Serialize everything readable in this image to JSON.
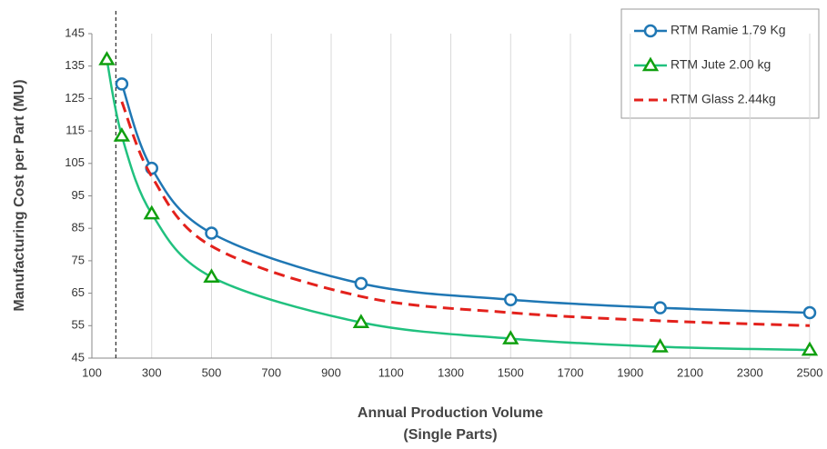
{
  "chart_data": {
    "type": "line",
    "x_label": [
      "Annual Production Volume",
      "(Single Parts)"
    ],
    "y_label": "Manufacturing Cost per Part (MU)",
    "xlim": [
      100,
      2500
    ],
    "xticks": [
      100,
      300,
      500,
      700,
      900,
      1100,
      1300,
      1500,
      1700,
      1900,
      2100,
      2300,
      2500
    ],
    "ylim": [
      45,
      145
    ],
    "yticks": [
      45,
      55,
      65,
      75,
      85,
      95,
      105,
      115,
      125,
      135,
      145
    ],
    "grid": "x",
    "legend": "top-right",
    "reference_line_x": 180,
    "series": [
      {
        "name": "RTM Ramie 1.79 Kg",
        "color": "#1f77b4",
        "marker": "circle",
        "dash": false,
        "x": [
          200,
          300,
          500,
          1000,
          1500,
          2000,
          2500
        ],
        "values": [
          129.5,
          103.5,
          83.5,
          68,
          63,
          60.5,
          59
        ]
      },
      {
        "name": "RTM Jute 2.00 kg",
        "color": "#21c17f",
        "marker_color": "#10a010",
        "marker": "triangle",
        "dash": false,
        "x": [
          150,
          200,
          300,
          500,
          1000,
          1500,
          2000,
          2500
        ],
        "values": [
          137,
          113.5,
          89.5,
          70,
          56,
          51,
          48.5,
          47.5
        ]
      },
      {
        "name": "RTM Glass 2.44kg",
        "color": "#e3211c",
        "marker": "none",
        "dash": true,
        "x": [
          200,
          300,
          500,
          1000,
          1500,
          2000,
          2500
        ],
        "values": [
          124,
          101,
          79.5,
          64,
          59,
          56.5,
          55
        ]
      }
    ]
  }
}
